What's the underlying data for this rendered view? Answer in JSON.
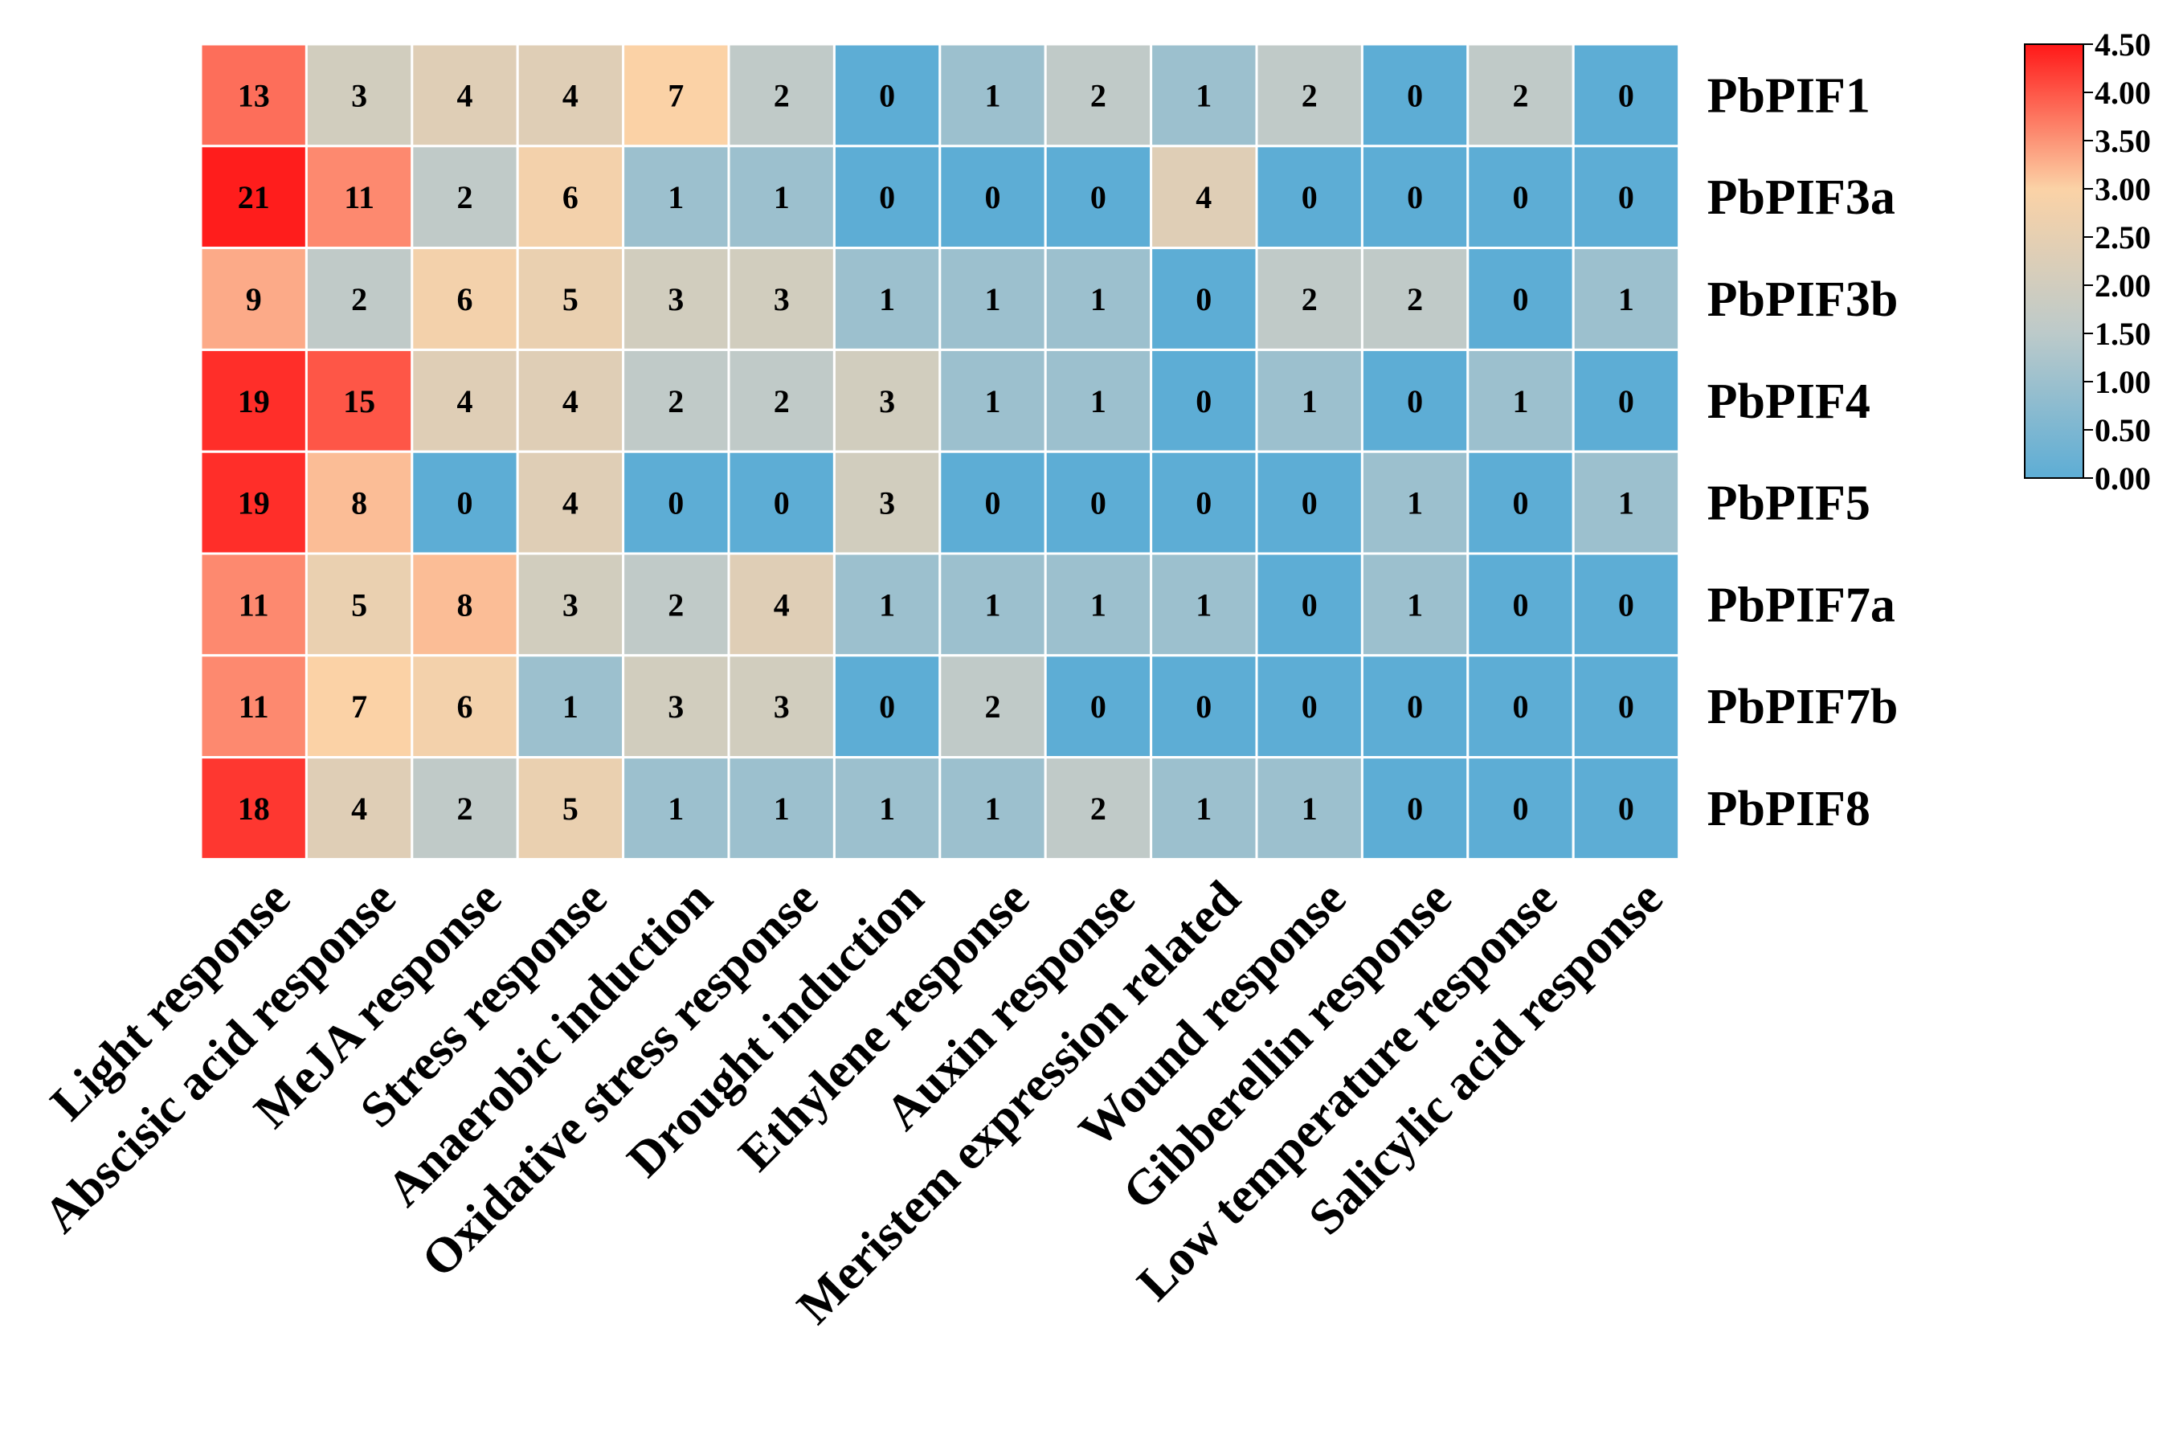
{
  "chart_data": {
    "type": "heatmap",
    "title": "",
    "xlabel": "",
    "ylabel": "",
    "columns": [
      "Light response",
      "Abscisic acid response",
      "MeJA response",
      "Stress response",
      "Anaerobic induction",
      "Oxidative stress response",
      "Drought induction",
      "Ethylene response",
      "Auxin response",
      "Meristem expression related",
      "Wound response",
      "Gibberellin response",
      "Low temperature response",
      "Salicylic acid response"
    ],
    "rows": [
      "PbPIF1",
      "PbPIF3a",
      "PbPIF3b",
      "PbPIF4",
      "PbPIF5",
      "PbPIF7a",
      "PbPIF7b",
      "PbPIF8"
    ],
    "values": [
      [
        13,
        3,
        4,
        4,
        7,
        2,
        0,
        1,
        2,
        1,
        2,
        0,
        2,
        0
      ],
      [
        21,
        11,
        2,
        6,
        1,
        1,
        0,
        0,
        0,
        4,
        0,
        0,
        0,
        0
      ],
      [
        9,
        2,
        6,
        5,
        3,
        3,
        1,
        1,
        1,
        0,
        2,
        2,
        0,
        1
      ],
      [
        19,
        15,
        4,
        4,
        2,
        2,
        3,
        1,
        1,
        0,
        1,
        0,
        1,
        0
      ],
      [
        19,
        8,
        0,
        4,
        0,
        0,
        3,
        0,
        0,
        0,
        0,
        1,
        0,
        1
      ],
      [
        11,
        5,
        8,
        3,
        2,
        4,
        1,
        1,
        1,
        1,
        0,
        1,
        0,
        0
      ],
      [
        11,
        7,
        6,
        1,
        3,
        3,
        0,
        2,
        0,
        0,
        0,
        0,
        0,
        0
      ],
      [
        18,
        4,
        2,
        5,
        1,
        1,
        1,
        1,
        2,
        1,
        1,
        0,
        0,
        0
      ]
    ],
    "color_scale": "log2(value + 1)",
    "colorbar": {
      "range": [
        0,
        4.5
      ],
      "ticks": [
        0,
        0.5,
        1,
        1.5,
        2,
        2.5,
        3,
        3.5,
        4,
        4.5
      ],
      "tick_labels": [
        "0.00",
        "0.50",
        "1.00",
        "1.50",
        "2.00",
        "2.50",
        "3.00",
        "3.50",
        "4.00",
        "4.50"
      ],
      "colors": [
        "#5DADD5",
        "#BCCACA",
        "#FBD2A6",
        "#FF1818"
      ]
    },
    "grid_line_color": "#ffffff"
  }
}
